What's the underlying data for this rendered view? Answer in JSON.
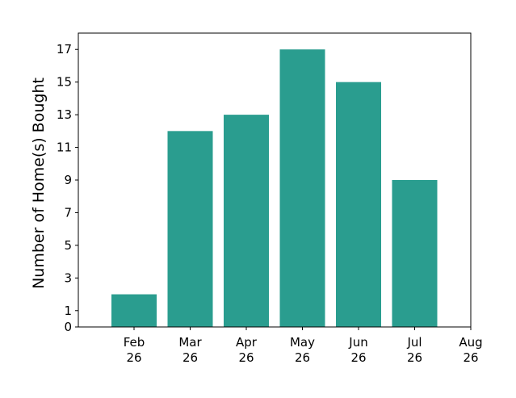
{
  "chart_data": {
    "type": "bar",
    "title": "",
    "xlabel": "",
    "ylabel": "Number of Home(s) Bought",
    "categories": [
      {
        "month": "Feb",
        "year": "26",
        "value": 2
      },
      {
        "month": "Mar",
        "year": "26",
        "value": 12
      },
      {
        "month": "Apr",
        "year": "26",
        "value": 13
      },
      {
        "month": "May",
        "year": "26",
        "value": 17
      },
      {
        "month": "Jun",
        "year": "26",
        "value": 15
      },
      {
        "month": "Jul",
        "year": "26",
        "value": 9
      }
    ],
    "x_ticks": [
      {
        "month": "Feb",
        "year": "26"
      },
      {
        "month": "Mar",
        "year": "26"
      },
      {
        "month": "Apr",
        "year": "26"
      },
      {
        "month": "May",
        "year": "26"
      },
      {
        "month": "Jun",
        "year": "26"
      },
      {
        "month": "Jul",
        "year": "26"
      },
      {
        "month": "Aug",
        "year": "26"
      }
    ],
    "y_ticks": [
      0,
      1,
      3,
      5,
      7,
      9,
      11,
      13,
      15,
      17
    ],
    "ylim": [
      0,
      18
    ],
    "bar_color": "#2a9d8f",
    "grid": false,
    "legend": "none"
  }
}
